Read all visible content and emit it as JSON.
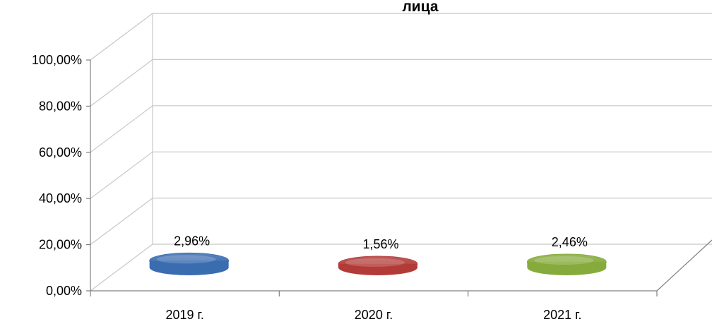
{
  "chart_data": {
    "type": "bar",
    "title": "лица",
    "categories": [
      "2019 г.",
      "2020 г.",
      "2021 г."
    ],
    "values": [
      2.96,
      1.56,
      2.46
    ],
    "data_labels": [
      "2,96%",
      "1,56%",
      "2,46%"
    ],
    "y_ticks": [
      "0,00%",
      "20,00%",
      "40,00%",
      "60,00%",
      "80,00%",
      "100,00%"
    ],
    "ylim": [
      0,
      100
    ],
    "grid": true,
    "legend": "none",
    "colors": [
      "#3a6cb0",
      "#b23b38",
      "#86ab3c"
    ]
  }
}
